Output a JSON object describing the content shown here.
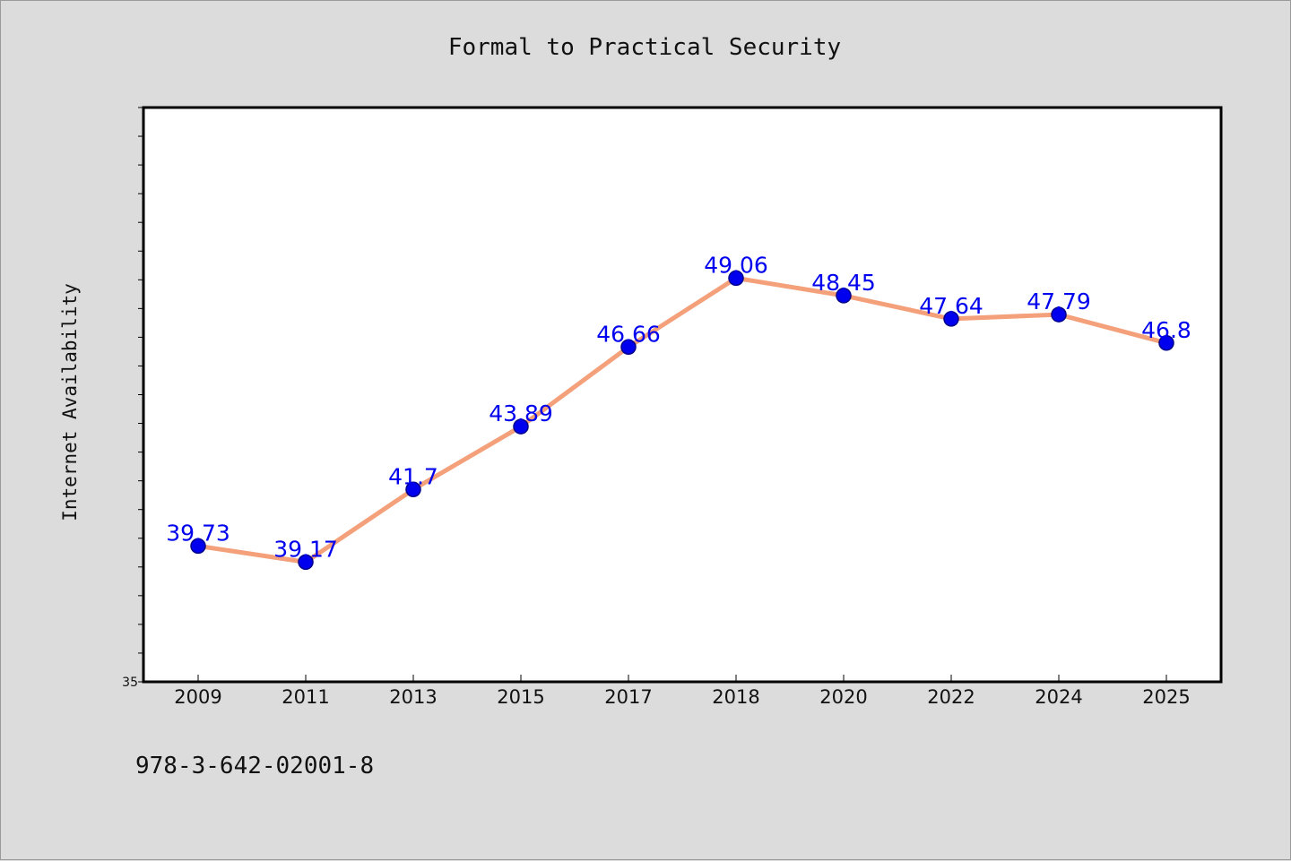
{
  "chart_data": {
    "type": "line",
    "title": "Formal to Practical Security",
    "ylabel": "Internet Availability",
    "xlabel": "",
    "categories": [
      "2009",
      "2011",
      "2013",
      "2015",
      "2017",
      "2018",
      "2020",
      "2022",
      "2024",
      "2025"
    ],
    "series": [
      {
        "values": [
          39.73,
          39.17,
          41.7,
          43.89,
          46.66,
          49.06,
          48.45,
          47.64,
          47.79,
          46.8
        ],
        "data_labels": [
          "39.73",
          "39.17",
          "41.7",
          "43.89",
          "46.66",
          "49.06",
          "48.45",
          "47.64",
          "47.79",
          "46.8"
        ],
        "line_color": "#f4a07a",
        "marker_color": "#0000ee"
      }
    ],
    "ylim": [
      35,
      55
    ],
    "y_tick_labels": [
      "35"
    ],
    "y_minor_tick_step": 1,
    "grid": false,
    "legend": "none",
    "colors": {
      "background": "#dcdcdc",
      "plot_area": "#ffffff",
      "data_label": "#0000ee"
    }
  },
  "footnote": "978-3-642-02001-8"
}
